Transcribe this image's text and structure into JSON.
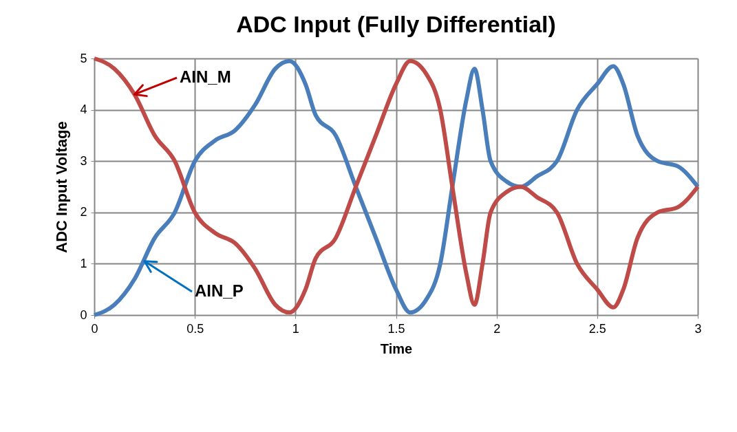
{
  "chart_data": {
    "type": "line",
    "title": "ADC Input (Fully Differential)",
    "xlabel": "Time",
    "ylabel": "ADC Input Voltage",
    "xlim": [
      0,
      3
    ],
    "xticks": [
      0,
      0.5,
      1,
      1.5,
      2,
      2.5,
      3
    ],
    "ylim": [
      0,
      5
    ],
    "yticks": [
      0,
      1,
      2,
      3,
      4,
      5
    ],
    "grid": true,
    "legend": false,
    "marker": "none",
    "line_style": "solid",
    "x": [
      0,
      0.1,
      0.2,
      0.3,
      0.4,
      0.5,
      0.6,
      0.7,
      0.8,
      0.9,
      0.97,
      1.05,
      1.1,
      1.2,
      1.3,
      1.4,
      1.5,
      1.57,
      1.65,
      1.72,
      1.78,
      1.85,
      1.89,
      1.93,
      1.97,
      2.05,
      2.12,
      2.2,
      2.3,
      2.4,
      2.5,
      2.58,
      2.63,
      2.7,
      2.8,
      2.9,
      3.0
    ],
    "series": [
      {
        "color": "#4a7ebb",
        "values": [
          0,
          0.2,
          0.7,
          1.5,
          2.0,
          3.0,
          3.4,
          3.6,
          4.1,
          4.8,
          4.95,
          4.5,
          3.9,
          3.5,
          2.5,
          1.5,
          0.5,
          0.05,
          0.3,
          1.0,
          2.5,
          4.2,
          4.8,
          4.0,
          3.0,
          2.6,
          2.5,
          2.7,
          3.0,
          4.0,
          4.5,
          4.85,
          4.5,
          3.5,
          3.0,
          2.9,
          2.5
        ]
      },
      {
        "color": "#be4b48",
        "values": [
          5,
          4.8,
          4.3,
          3.5,
          3.0,
          2.0,
          1.6,
          1.4,
          0.9,
          0.2,
          0.05,
          0.5,
          1.1,
          1.5,
          2.5,
          3.5,
          4.5,
          4.95,
          4.7,
          4.0,
          2.5,
          0.8,
          0.2,
          1.0,
          2.0,
          2.4,
          2.5,
          2.3,
          2.0,
          1.0,
          0.5,
          0.15,
          0.5,
          1.5,
          2.0,
          2.1,
          2.5
        ]
      }
    ],
    "annotations": [
      {
        "text": "AIN_M",
        "x": 0.2,
        "y": 4.3
      },
      {
        "text": "AIN_P",
        "x": 0.25,
        "y": 1.05
      }
    ]
  }
}
